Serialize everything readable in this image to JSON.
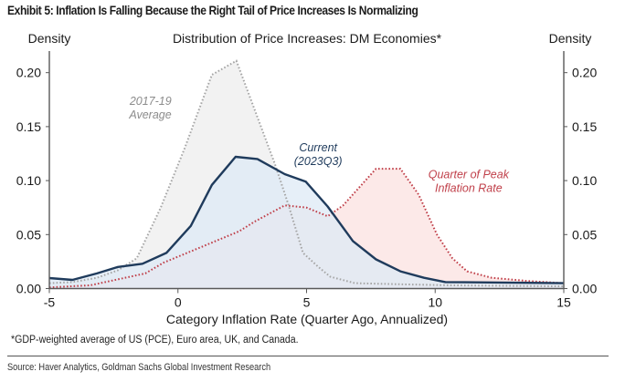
{
  "exhibit_title": "Exhibit 5: Inflation Is Falling Because the Right Tail of Price Increases Is Normalizing",
  "footnote": "*GDP-weighted average of US (PCE), Euro area, UK, and Canada.",
  "source": "Source: Haver Analytics, Goldman Sachs Global Investment Research",
  "chart_data": {
    "type": "area",
    "title": "Distribution of Price Increases: DM Economies*",
    "xlabel": "Category Inflation Rate (Quarter Ago, Annualized)",
    "ylabel_left": "Density",
    "ylabel_right": "Density",
    "xlim": [
      -5,
      15
    ],
    "ylim": [
      0,
      0.22
    ],
    "x_ticks": [
      -5,
      0,
      5,
      10,
      15
    ],
    "x_tick_labels": [
      "-5",
      "0",
      "5",
      "10",
      "15"
    ],
    "y_ticks": [
      0,
      0.05,
      0.1,
      0.15,
      0.2
    ],
    "y_tick_labels": [
      "0.00",
      "0.05",
      "0.10",
      "0.15",
      "0.20"
    ],
    "grid": false,
    "series": [
      {
        "name": "2017-19 Average",
        "label_lines": [
          "2017-19",
          "Average"
        ],
        "style": "dotted",
        "line_color": "#a6a6a6",
        "fill_color": "#f2f2f2",
        "label_color": "#8c8c8c",
        "points": [
          [
            -5.0,
            0.005
          ],
          [
            -4.1,
            0.006
          ],
          [
            -3.15,
            0.01
          ],
          [
            -2.33,
            0.017
          ],
          [
            -1.6,
            0.028
          ],
          [
            -0.67,
            0.075
          ],
          [
            0.26,
            0.13
          ],
          [
            1.32,
            0.198
          ],
          [
            2.27,
            0.211
          ],
          [
            3.76,
            0.116
          ],
          [
            4.29,
            0.078
          ],
          [
            4.86,
            0.033
          ],
          [
            5.46,
            0.02
          ],
          [
            5.92,
            0.011
          ],
          [
            6.88,
            0.005
          ],
          [
            8.65,
            0.004
          ],
          [
            10.5,
            0.003
          ],
          [
            15.0,
            0.002
          ]
        ]
      },
      {
        "name": "Quarter of Peak Inflation Rate",
        "label_lines": [
          "Quarter of Peak",
          "Inflation Rate"
        ],
        "style": "dotted",
        "line_color": "#c0404a",
        "fill_color": "#fbe1e0",
        "label_color": "#c0404a",
        "points": [
          [
            -5.0,
            0.001
          ],
          [
            -3.4,
            0.003
          ],
          [
            -1.27,
            0.014
          ],
          [
            -0.56,
            0.024
          ],
          [
            2.38,
            0.053
          ],
          [
            2.98,
            0.062
          ],
          [
            4.15,
            0.077
          ],
          [
            5.0,
            0.075
          ],
          [
            5.82,
            0.067
          ],
          [
            6.42,
            0.077
          ],
          [
            7.7,
            0.111
          ],
          [
            8.65,
            0.111
          ],
          [
            9.36,
            0.087
          ],
          [
            10.07,
            0.05
          ],
          [
            10.67,
            0.028
          ],
          [
            11.24,
            0.016
          ],
          [
            12.2,
            0.01
          ],
          [
            13.6,
            0.007
          ],
          [
            15.0,
            0.005
          ]
        ]
      },
      {
        "name": "Current (2023Q3)",
        "label_lines": [
          "Current",
          "(2023Q3)"
        ],
        "style": "solid",
        "line_color": "#1f3b5c",
        "fill_color": "#dde9f6",
        "label_color": "#1f3b5c",
        "points": [
          [
            -5.0,
            0.0097
          ],
          [
            -4.1,
            0.008
          ],
          [
            -3.15,
            0.014
          ],
          [
            -2.33,
            0.02
          ],
          [
            -1.38,
            0.023
          ],
          [
            -0.45,
            0.033
          ],
          [
            0.5,
            0.058
          ],
          [
            1.32,
            0.096
          ],
          [
            2.24,
            0.122
          ],
          [
            3.09,
            0.12
          ],
          [
            4.15,
            0.106
          ],
          [
            4.97,
            0.099
          ],
          [
            5.82,
            0.076
          ],
          [
            6.8,
            0.044
          ],
          [
            7.7,
            0.027
          ],
          [
            8.65,
            0.016
          ],
          [
            9.57,
            0.01
          ],
          [
            10.4,
            0.006
          ],
          [
            15.0,
            0.005
          ]
        ]
      }
    ],
    "overlap_fill_color": "#e2e6ee"
  }
}
